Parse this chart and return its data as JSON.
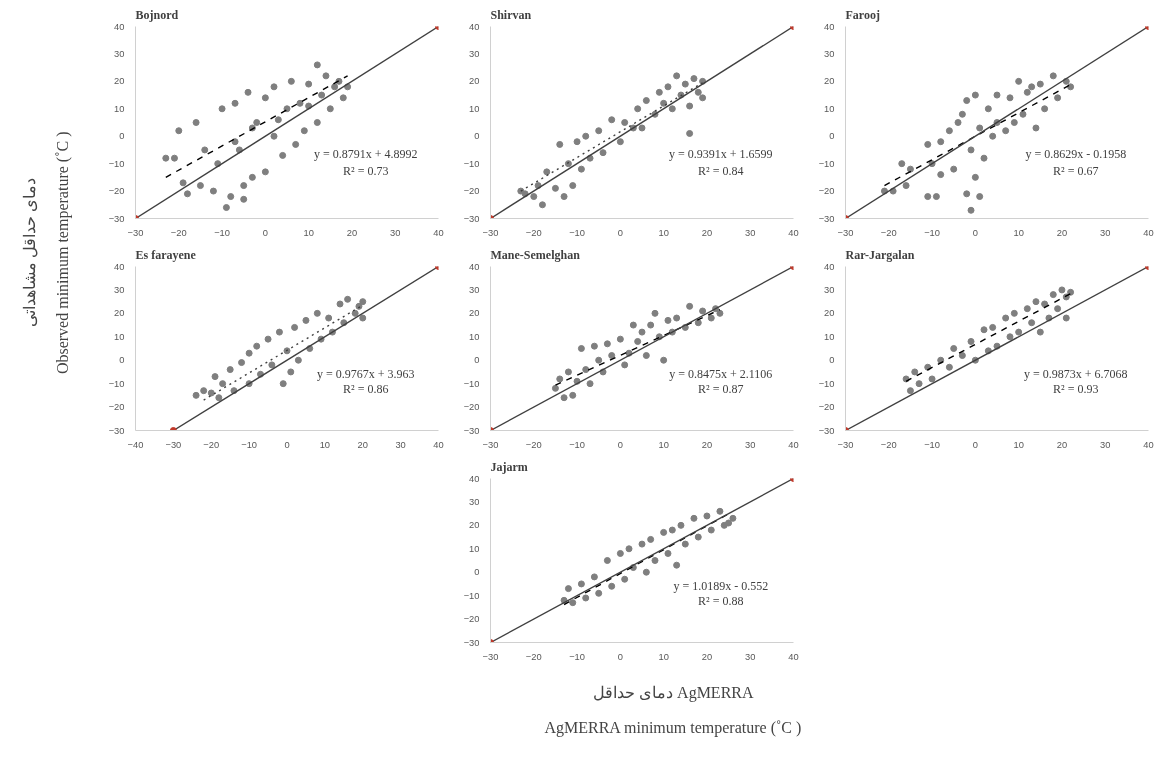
{
  "chart_data": [
    {
      "type": "scatter",
      "title": "Bojnord",
      "xlim": [
        -30,
        40
      ],
      "ylim": [
        -30,
        40
      ],
      "xticks": [
        -30,
        -20,
        -10,
        0,
        10,
        20,
        30,
        40
      ],
      "yticks": [
        -30,
        -20,
        -10,
        0,
        10,
        20,
        30,
        40
      ],
      "grid": false,
      "annotations": [
        "y = 0.8791x + 4.8992",
        "R² = 0.73"
      ],
      "series": [
        {
          "type": "scatter",
          "color": "#7f7f7f",
          "marker": "circle",
          "x": [
            -23,
            -21,
            -20,
            -19,
            -18,
            -16,
            -15,
            -14,
            -12,
            -10,
            -9,
            -8,
            -7,
            -6,
            -5,
            -5,
            -4,
            -3,
            -2,
            0,
            0,
            2,
            2,
            4,
            5,
            6,
            7,
            8,
            9,
            10,
            12,
            12,
            13,
            14,
            15,
            16,
            17,
            18,
            19,
            -11,
            -7,
            -3,
            3,
            10
          ],
          "values": [
            -8,
            -8,
            2,
            -17,
            -21,
            5,
            -18,
            -5,
            -20,
            10,
            -26,
            -22,
            12,
            -5,
            -23,
            -18,
            16,
            -15,
            5,
            -13,
            14,
            0,
            18,
            -7,
            10,
            20,
            -3,
            12,
            2,
            19,
            26,
            5,
            15,
            22,
            10,
            18,
            20,
            14,
            18,
            -10,
            -2,
            3,
            6,
            11
          ]
        },
        {
          "type": "line",
          "color": "#000000",
          "line_style": "dashed",
          "x": [
            -23,
            19
          ],
          "values": [
            -15,
            22
          ]
        },
        {
          "type": "line",
          "color": "#404040",
          "line_style": "solid",
          "x": [
            -30,
            40
          ],
          "values": [
            -30,
            40
          ]
        },
        {
          "type": "scatter",
          "color": "#c0392b",
          "marker": "circle",
          "x": [
            -30,
            40
          ],
          "values": [
            -30,
            40
          ]
        }
      ]
    },
    {
      "type": "scatter",
      "title": "Shirvan",
      "xlim": [
        -30,
        40
      ],
      "ylim": [
        -30,
        40
      ],
      "xticks": [
        -30,
        -20,
        -10,
        0,
        10,
        20,
        30,
        40
      ],
      "yticks": [
        -30,
        -20,
        -10,
        0,
        10,
        20,
        30,
        40
      ],
      "grid": false,
      "annotations": [
        "y = 0.9391x + 1.6599",
        "R² = 0.84"
      ],
      "series": [
        {
          "type": "scatter",
          "color": "#7f7f7f",
          "marker": "circle",
          "x": [
            -23,
            -22,
            -20,
            -19,
            -18,
            -17,
            -15,
            -14,
            -13,
            -12,
            -11,
            -10,
            -9,
            -8,
            -7,
            -5,
            -4,
            -2,
            0,
            1,
            3,
            4,
            5,
            6,
            8,
            9,
            10,
            11,
            12,
            13,
            14,
            15,
            16,
            16,
            17,
            18,
            19,
            19
          ],
          "values": [
            -20,
            -21,
            -22,
            -18,
            -25,
            -13,
            -19,
            -3,
            -22,
            -10,
            -18,
            -2,
            -12,
            0,
            -8,
            2,
            -6,
            6,
            -2,
            5,
            3,
            10,
            3,
            13,
            8,
            16,
            12,
            18,
            10,
            22,
            15,
            19,
            1,
            11,
            21,
            16,
            20,
            14
          ]
        },
        {
          "type": "line",
          "color": "#404040",
          "line_style": "dotted",
          "x": [
            -23,
            19
          ],
          "values": [
            -20,
            19.5
          ]
        },
        {
          "type": "line",
          "color": "#404040",
          "line_style": "solid",
          "x": [
            -30,
            40
          ],
          "values": [
            -30,
            40
          ]
        },
        {
          "type": "scatter",
          "color": "#c0392b",
          "marker": "circle",
          "x": [
            -30,
            40
          ],
          "values": [
            -30,
            40
          ]
        }
      ]
    },
    {
      "type": "scatter",
      "title": "Farooj",
      "xlim": [
        -30,
        40
      ],
      "ylim": [
        -30,
        40
      ],
      "xticks": [
        -30,
        -20,
        -10,
        0,
        10,
        20,
        30,
        40
      ],
      "yticks": [
        -30,
        -20,
        -10,
        0,
        10,
        20,
        30,
        40
      ],
      "grid": false,
      "annotations": [
        "y = 0.8629x - 0.1958",
        "R² = 0.67"
      ],
      "series": [
        {
          "type": "scatter",
          "color": "#7f7f7f",
          "marker": "circle",
          "x": [
            -21,
            -19,
            -17,
            -16,
            -15,
            -11,
            -11,
            -10,
            -9,
            -8,
            -8,
            -6,
            -5,
            -4,
            -3,
            -2,
            -2,
            -1,
            -1,
            0,
            0,
            1,
            1,
            2,
            3,
            4,
            5,
            5,
            7,
            8,
            9,
            10,
            11,
            12,
            13,
            14,
            15,
            16,
            18,
            19,
            21,
            22
          ],
          "values": [
            -20,
            -20,
            -10,
            -18,
            -12,
            -3,
            -22,
            -10,
            -22,
            -14,
            -2,
            2,
            -12,
            5,
            8,
            13,
            -21,
            -5,
            -27,
            15,
            -15,
            -22,
            3,
            -8,
            10,
            0,
            15,
            5,
            2,
            14,
            5,
            20,
            8,
            16,
            18,
            3,
            19,
            10,
            22,
            14,
            20,
            18
          ]
        },
        {
          "type": "line",
          "color": "#000000",
          "line_style": "dashed",
          "x": [
            -21,
            22
          ],
          "values": [
            -18,
            18.8
          ]
        },
        {
          "type": "line",
          "color": "#404040",
          "line_style": "solid",
          "x": [
            -30,
            40
          ],
          "values": [
            -30,
            40
          ]
        },
        {
          "type": "scatter",
          "color": "#c0392b",
          "marker": "circle",
          "x": [
            -30,
            40
          ],
          "values": [
            -30,
            40
          ]
        }
      ]
    },
    {
      "type": "scatter",
      "title": "Es farayene",
      "xlim": [
        -40,
        40
      ],
      "ylim": [
        -30,
        40
      ],
      "xticks": [
        -40,
        -30,
        -20,
        -10,
        0,
        10,
        20,
        30,
        40
      ],
      "yticks": [
        -30,
        -20,
        -10,
        0,
        10,
        20,
        30,
        40
      ],
      "grid": false,
      "annotations": [
        "y = 0.9767x + 3.963",
        "R² = 0.86"
      ],
      "series": [
        {
          "type": "scatter",
          "color": "#7f7f7f",
          "marker": "circle",
          "x": [
            -24,
            -22,
            -20,
            -19,
            -18,
            -17,
            -15,
            -14,
            -12,
            -10,
            -10,
            -8,
            -7,
            -5,
            -4,
            -2,
            -1,
            0,
            1,
            2,
            3,
            5,
            6,
            8,
            9,
            11,
            12,
            14,
            15,
            16,
            18,
            19,
            20,
            20
          ],
          "values": [
            -15,
            -13,
            -14,
            -7,
            -16,
            -10,
            -4,
            -13,
            -1,
            3,
            -10,
            6,
            -6,
            9,
            -2,
            12,
            -10,
            4,
            -5,
            14,
            0,
            17,
            5,
            20,
            9,
            18,
            12,
            24,
            16,
            26,
            20,
            23,
            18,
            25
          ]
        },
        {
          "type": "line",
          "color": "#404040",
          "line_style": "dotted",
          "x": [
            -22,
            20
          ],
          "values": [
            -17,
            23.5
          ]
        },
        {
          "type": "line",
          "color": "#404040",
          "line_style": "solid",
          "x": [
            -30,
            40
          ],
          "values": [
            -30,
            40
          ]
        },
        {
          "type": "scatter",
          "color": "#c0392b",
          "marker": "circle",
          "x": [
            -30,
            40
          ],
          "values": [
            -30,
            40
          ]
        }
      ]
    },
    {
      "type": "scatter",
      "title": "Mane-Semelghan",
      "xlim": [
        -30,
        40
      ],
      "ylim": [
        -30,
        40
      ],
      "xticks": [
        -30,
        -20,
        -10,
        0,
        10,
        20,
        30,
        40
      ],
      "yticks": [
        -30,
        -20,
        -10,
        0,
        10,
        20,
        30,
        40
      ],
      "grid": false,
      "annotations": [
        "y = 0.8475x + 2.1106",
        "R² = 0.87"
      ],
      "series": [
        {
          "type": "scatter",
          "color": "#7f7f7f",
          "marker": "circle",
          "x": [
            -15,
            -14,
            -13,
            -12,
            -11,
            -10,
            -9,
            -8,
            -7,
            -6,
            -5,
            -4,
            -3,
            -2,
            0,
            1,
            2,
            3,
            4,
            5,
            6,
            7,
            8,
            9,
            10,
            11,
            12,
            13,
            15,
            16,
            18,
            19,
            21,
            22,
            23
          ],
          "values": [
            -12,
            -8,
            -16,
            -5,
            -15,
            -9,
            5,
            -4,
            -10,
            6,
            0,
            -5,
            7,
            2,
            9,
            -2,
            3,
            15,
            8,
            12,
            2,
            15,
            20,
            10,
            0,
            17,
            12,
            18,
            14,
            23,
            16,
            21,
            18,
            22,
            20
          ]
        },
        {
          "type": "line",
          "color": "#000000",
          "line_style": "dashed",
          "x": [
            -15,
            23
          ],
          "values": [
            -10.6,
            21.6
          ]
        },
        {
          "type": "line",
          "color": "#404040",
          "line_style": "solid",
          "x": [
            -30,
            40
          ],
          "values": [
            -30,
            40
          ]
        },
        {
          "type": "scatter",
          "color": "#c0392b",
          "marker": "circle",
          "x": [
            -30,
            40
          ],
          "values": [
            -30,
            40
          ]
        }
      ]
    },
    {
      "type": "scatter",
      "title": "Rar-Jargalan",
      "xlim": [
        -30,
        40
      ],
      "ylim": [
        -30,
        40
      ],
      "xticks": [
        -30,
        -20,
        -10,
        0,
        10,
        20,
        30,
        40
      ],
      "yticks": [
        -30,
        -20,
        -10,
        0,
        10,
        20,
        30,
        40
      ],
      "grid": false,
      "annotations": [
        "y = 0.9873x + 6.7068",
        "R² = 0.93"
      ],
      "series": [
        {
          "type": "scatter",
          "color": "#7f7f7f",
          "marker": "circle",
          "x": [
            -16,
            -15,
            -14,
            -13,
            -11,
            -10,
            -8,
            -6,
            -5,
            -3,
            -1,
            0,
            2,
            3,
            4,
            5,
            7,
            8,
            9,
            10,
            12,
            13,
            14,
            15,
            16,
            17,
            18,
            19,
            20,
            21,
            21,
            22
          ],
          "values": [
            -8,
            -13,
            -5,
            -10,
            -3,
            -8,
            0,
            -3,
            5,
            2,
            8,
            0,
            13,
            4,
            14,
            6,
            18,
            10,
            20,
            12,
            22,
            16,
            25,
            12,
            24,
            18,
            28,
            22,
            30,
            18,
            27,
            29
          ]
        },
        {
          "type": "line",
          "color": "#000000",
          "line_style": "dashed",
          "x": [
            -16,
            22
          ],
          "values": [
            -9,
            28.4
          ]
        },
        {
          "type": "line",
          "color": "#404040",
          "line_style": "solid",
          "x": [
            -30,
            40
          ],
          "values": [
            -30,
            40
          ]
        },
        {
          "type": "scatter",
          "color": "#c0392b",
          "marker": "circle",
          "x": [
            -30,
            40
          ],
          "values": [
            -30,
            40
          ]
        }
      ]
    },
    {
      "type": "scatter",
      "title": "Jajarm",
      "xlim": [
        -30,
        40
      ],
      "ylim": [
        -30,
        40
      ],
      "xticks": [
        -30,
        -20,
        -10,
        0,
        10,
        20,
        30,
        40
      ],
      "yticks": [
        -30,
        -20,
        -10,
        0,
        10,
        20,
        30,
        40
      ],
      "grid": false,
      "annotations": [
        "y = 1.0189x - 0.552",
        "R² = 0.88"
      ],
      "series": [
        {
          "type": "scatter",
          "color": "#7f7f7f",
          "marker": "circle",
          "x": [
            -13,
            -12,
            -11,
            -9,
            -8,
            -6,
            -5,
            -3,
            -2,
            0,
            1,
            2,
            3,
            5,
            6,
            7,
            8,
            10,
            11,
            12,
            13,
            14,
            15,
            17,
            18,
            20,
            21,
            23,
            24,
            26,
            25
          ],
          "values": [
            -12,
            -7,
            -13,
            -5,
            -11,
            -2,
            -9,
            5,
            -6,
            8,
            -3,
            10,
            2,
            12,
            0,
            14,
            5,
            17,
            8,
            18,
            3,
            20,
            12,
            23,
            15,
            24,
            18,
            26,
            20,
            23,
            21
          ]
        },
        {
          "type": "line",
          "color": "#000000",
          "line_style": "dashed",
          "x": [
            -13,
            25
          ],
          "values": [
            -13.8,
            24.9
          ]
        },
        {
          "type": "line",
          "color": "#404040",
          "line_style": "solid",
          "x": [
            -30,
            40
          ],
          "values": [
            -30,
            40
          ]
        },
        {
          "type": "scatter",
          "color": "#c0392b",
          "marker": "circle",
          "x": [
            -30,
            40
          ],
          "values": [
            -30,
            40
          ]
        }
      ]
    },
    {
      "type": "other",
      "xlabel": "دمای حداقل AgMERRA\nAgMERRA minimum temperature (˚C )",
      "ylabel": "دمای حداقل مشاهداتی\nObserved minimum temperature (˚C )"
    }
  ]
}
